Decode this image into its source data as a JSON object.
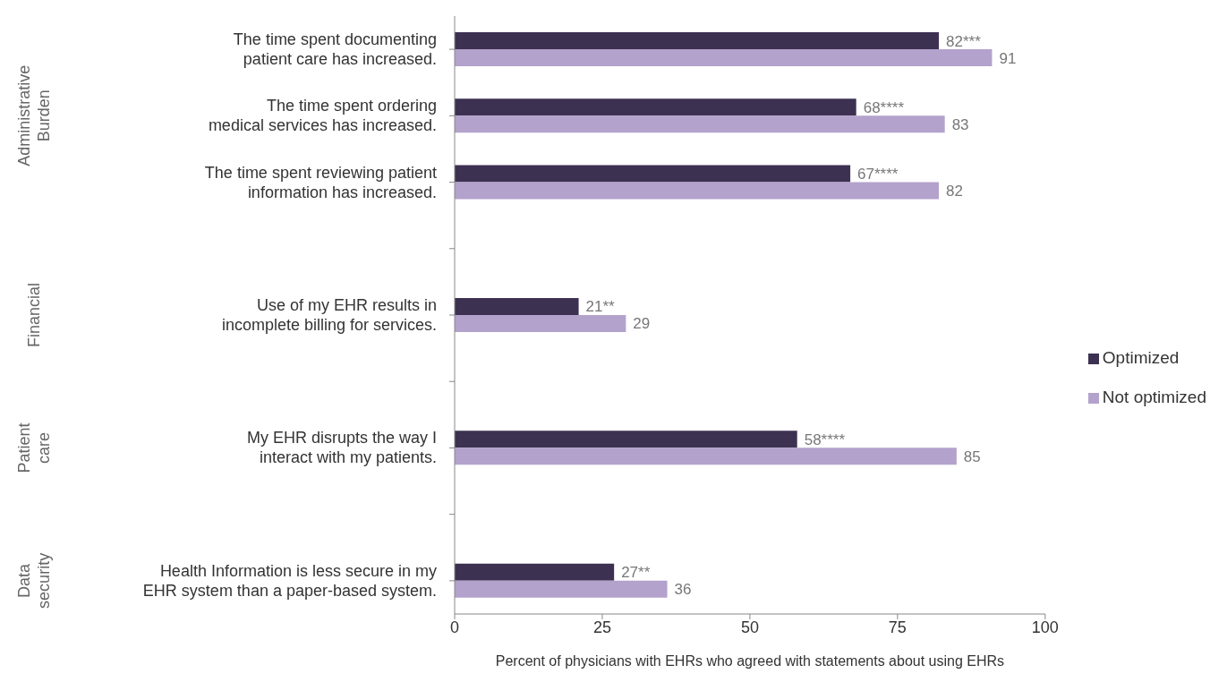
{
  "chart_data": {
    "type": "bar",
    "orientation": "horizontal",
    "categories": [
      "The time spent documenting patient care has increased.",
      "The time spent ordering medical services has increased.",
      "The time spent reviewing patient information has increased.",
      null,
      "Use of my EHR results in incomplete billing for services.",
      null,
      "My EHR disrupts the way I interact with my patients.",
      null,
      "Health Information is less secure in my EHR system than a paper-based system."
    ],
    "series": [
      {
        "name": "Optimized",
        "color": "#3d3152",
        "values": [
          82,
          68,
          67,
          null,
          21,
          null,
          58,
          null,
          27
        ],
        "value_labels": [
          "82***",
          "68****",
          "67****",
          null,
          "21**",
          null,
          "58****",
          null,
          "27**"
        ]
      },
      {
        "name": "Not optimized",
        "color": "#b3a2cc",
        "values": [
          91,
          83,
          82,
          null,
          29,
          null,
          85,
          null,
          36
        ],
        "value_labels": [
          "91",
          "83",
          "82",
          null,
          "29",
          null,
          "85",
          null,
          "36"
        ]
      }
    ],
    "xlabel": "Percent of physicians with EHRs who agreed with statements about using EHRs",
    "xlim": [
      0,
      100
    ],
    "xticks": [
      0,
      25,
      50,
      75,
      100
    ],
    "grid": false,
    "legend": "right",
    "annotations": [
      "Administrative Burden",
      "Financial",
      "Patient care",
      "Data security"
    ]
  }
}
